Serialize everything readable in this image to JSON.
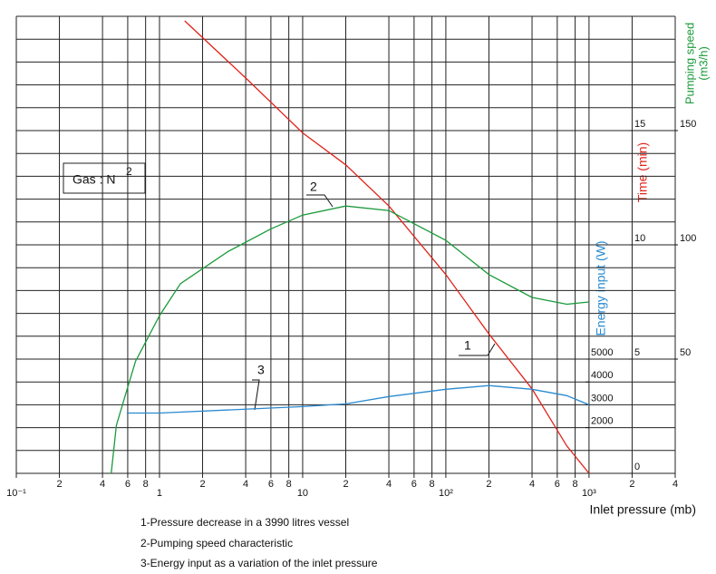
{
  "chart_data": {
    "type": "line",
    "xscale": "log",
    "xlabel": "Inlet pressure (mb)",
    "xlim": [
      0.1,
      4000
    ],
    "xticks": [
      {
        "value": 0.1,
        "label": "10⁻¹"
      },
      {
        "value": 0.2,
        "label": "2"
      },
      {
        "value": 0.4,
        "label": "4"
      },
      {
        "value": 0.6,
        "label": "6"
      },
      {
        "value": 0.8,
        "label": "8"
      },
      1,
      2,
      4,
      6,
      8,
      10,
      {
        "value": 20,
        "label": "2"
      },
      {
        "value": 40,
        "label": "4"
      },
      {
        "value": 60,
        "label": "6"
      },
      {
        "value": 80,
        "label": "8"
      },
      {
        "value": 100,
        "label": "10²"
      },
      {
        "value": 200,
        "label": "2"
      },
      {
        "value": 400,
        "label": "4"
      },
      {
        "value": 600,
        "label": "6"
      },
      {
        "value": 800,
        "label": "8"
      },
      {
        "value": 1000,
        "label": "10³"
      },
      {
        "value": 2000,
        "label": "2"
      },
      {
        "value": 4000,
        "label": "4"
      }
    ],
    "ylabel": "Pumping speed",
    "ylabel_unit": "(m3/h)",
    "ylim": [
      0,
      200
    ],
    "yticks": [
      50,
      100,
      150
    ],
    "ygrid": [
      0,
      10,
      20,
      30,
      40,
      50,
      60,
      70,
      80,
      90,
      100,
      110,
      120,
      130,
      140,
      150,
      160,
      170,
      180,
      190,
      200
    ],
    "y2label": "Time (min)",
    "y2lim": [
      0,
      20
    ],
    "y2ticks": [
      0,
      5,
      10,
      15
    ],
    "y3label": "Energy input (W)",
    "y3lim": [
      0,
      20000
    ],
    "y3ticks": [
      2000,
      3000,
      4000,
      5000
    ],
    "series": [
      {
        "name": "1",
        "color": "#e0241b",
        "axis": "y2",
        "x": [
          1.5,
          4,
          10,
          20,
          40,
          100,
          200,
          400,
          700,
          1000
        ],
        "values": [
          19.8,
          17.3,
          14.9,
          13.5,
          11.7,
          8.7,
          6.1,
          3.7,
          1.2,
          0
        ]
      },
      {
        "name": "2",
        "color": "#1a9a3a",
        "axis": "y",
        "x": [
          0.46,
          0.5,
          0.57,
          0.68,
          1,
          1.4,
          3,
          6,
          10,
          20,
          40,
          100,
          200,
          400,
          700,
          1000
        ],
        "values": [
          0,
          21,
          33,
          49,
          69,
          83,
          97,
          107,
          113,
          117,
          115,
          102,
          87,
          77,
          74,
          75
        ]
      },
      {
        "name": "3",
        "color": "#2a8ad0",
        "axis": "y3",
        "x": [
          0.59,
          1,
          10,
          20,
          40,
          100,
          200,
          400,
          700,
          1000
        ],
        "values": [
          2640,
          2640,
          2920,
          3040,
          3360,
          3680,
          3840,
          3680,
          3400,
          3000
        ]
      }
    ],
    "gas_label": "Gas : N",
    "gas_sub": "2",
    "captions": [
      "1-Pressure decrease in a 3990 litres vessel",
      "2-Pumping speed characteristic",
      "3-Energy input as a variation of the inlet pressure"
    ]
  }
}
